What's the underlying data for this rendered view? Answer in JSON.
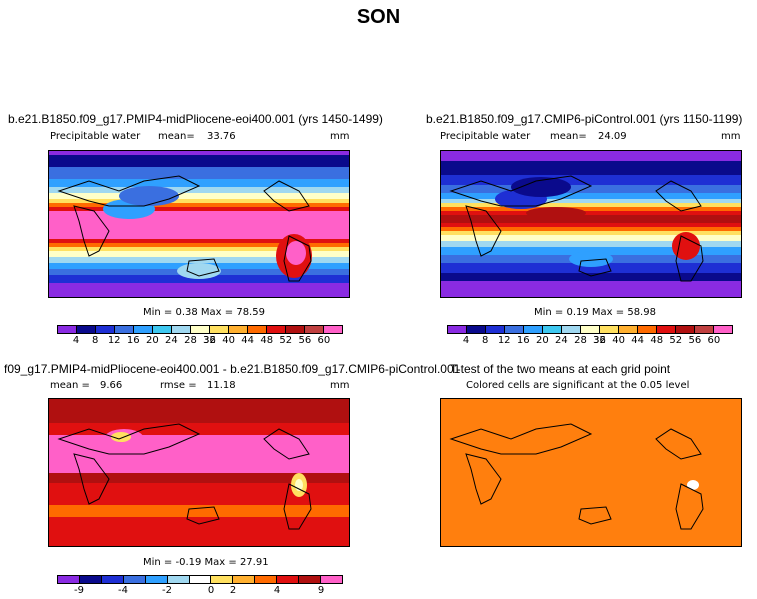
{
  "figure_title": "SON",
  "panels": {
    "p1": {
      "title": "b.e21.B1850.f09_g17.PMIP4-midPliocene-eoi400.001 (yrs 1450-1499)",
      "variable": "Precipitable water",
      "mean_label": "mean=",
      "mean_value": "33.76",
      "units": "mm",
      "minmax": "Min =   0.38  Max =   78.59"
    },
    "p2": {
      "title": "b.e21.B1850.f09_g17.CMIP6-piControl.001 (yrs 1150-1199)",
      "variable": "Precipitable water",
      "mean_label": "mean=",
      "mean_value": "24.09",
      "units": "mm",
      "minmax": "Min =   0.19  Max =   58.98"
    },
    "p3": {
      "title": "f09_g17.PMIP4-midPliocene-eoi400.001 - b.e21.B1850.f09_g17.CMIP6-piControl.001",
      "mean_label": "mean =",
      "mean_value": "9.66",
      "rmse_label": "rmse =",
      "rmse_value": "11.18",
      "units": "mm",
      "minmax": "Min =  -0.19  Max =   27.91"
    },
    "p4": {
      "title": "T-test of the two means at each grid point",
      "subtitle": "Colored cells are significant at the 0.05 level"
    }
  },
  "colorbar_abs": {
    "colors": [
      "#8a2be2",
      "#0a0a8c",
      "#1e2fd4",
      "#3a6fe0",
      "#2fa0ff",
      "#3ec8f0",
      "#a0d8f0",
      "#ffffc8",
      "#ffe060",
      "#ffb030",
      "#ff6a00",
      "#e01010",
      "#b01010",
      "#c04040",
      "#ff60c8"
    ],
    "ticks": [
      "4",
      "8",
      "12",
      "16",
      "20",
      "24",
      "28",
      "32",
      "36",
      "40",
      "44",
      "48",
      "52",
      "56",
      "60"
    ]
  },
  "colorbar_diff": {
    "colors": [
      "#8a2be2",
      "#0a0a8c",
      "#1e2fd4",
      "#3a6fe0",
      "#2fa0ff",
      "#a0d8f0",
      "#ffffff",
      "#ffe060",
      "#ffb030",
      "#ff6a00",
      "#e01010",
      "#b01010",
      "#ff60c8"
    ],
    "ticks": [
      "-9",
      "-4",
      "-2",
      "0",
      "2",
      "4",
      "9"
    ]
  },
  "field_colors": {
    "purple": "#8a2be2",
    "navy": "#0a0a8c",
    "blue": "#1e2fd4",
    "mid_blue": "#3a6fe0",
    "sky": "#2fa0ff",
    "cyan": "#3ec8f0",
    "pale_blue": "#a0d8f0",
    "cream": "#ffffc8",
    "yellow": "#ffe060",
    "orange": "#ff6a00",
    "red": "#e01010",
    "dark_red": "#b01010",
    "pink": "#ff60c8",
    "significance_orange": "#ff7f0e"
  }
}
